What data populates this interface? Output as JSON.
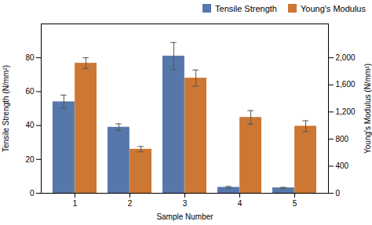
{
  "chart_data": {
    "type": "bar",
    "xlabel": "Sample Number",
    "ylabel": "Tensile Strength (N/mm²)",
    "y2label": "Young's Modulus (N/mm²)",
    "categories": [
      "1",
      "2",
      "3",
      "4",
      "5"
    ],
    "series": [
      {
        "name": "Tensile Strength",
        "color": "#5577aa",
        "axis": "y",
        "values": [
          54,
          39,
          81,
          3.5,
          3.2
        ],
        "errors": [
          4,
          2,
          8,
          0.5,
          0.3
        ]
      },
      {
        "name": "Young's Modulus",
        "color": "#cc7733",
        "axis": "y2",
        "values": [
          1920,
          650,
          1700,
          1120,
          990
        ],
        "errors": [
          80,
          40,
          120,
          100,
          80
        ]
      }
    ],
    "ylim": [
      0,
      100
    ],
    "yticks": [
      0,
      20,
      40,
      60,
      80
    ],
    "y2lim": [
      0,
      2500
    ],
    "y2ticks": [
      0,
      400,
      800,
      1200,
      1600,
      2000
    ],
    "grid": false,
    "legend": "upper right"
  }
}
